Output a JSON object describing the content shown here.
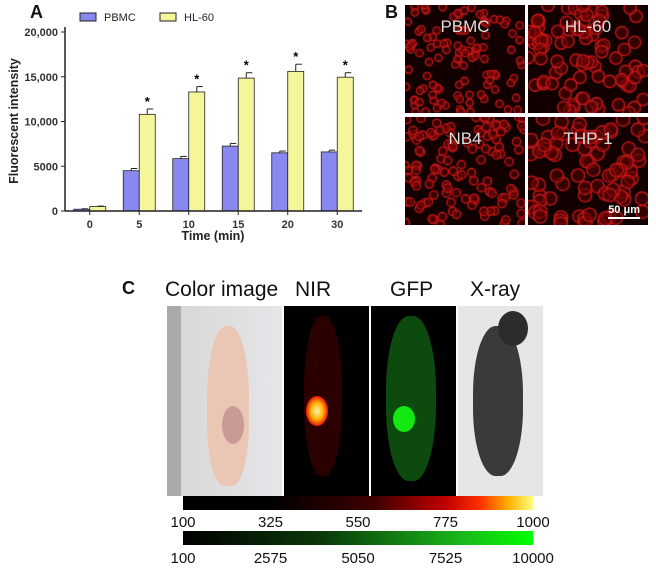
{
  "panels": {
    "a": "A",
    "b": "B",
    "c": "C"
  },
  "chart_data": {
    "type": "bar",
    "title": "",
    "xlabel": "Time (min)",
    "ylabel": "Fluorescent intensity",
    "categories": [
      "0",
      "5",
      "10",
      "15",
      "20",
      "30"
    ],
    "ylim": [
      0,
      20000
    ],
    "yticks": [
      0,
      5000,
      10000,
      15000,
      20000
    ],
    "ytick_labels": [
      "0",
      "5000",
      "10,000",
      "15,000",
      "20,000"
    ],
    "legend_position": "top",
    "series": [
      {
        "name": "PBMC",
        "color": "#8888ee",
        "values": [
          200,
          4500,
          5850,
          7250,
          6500,
          6600
        ],
        "errors": [
          50,
          250,
          250,
          300,
          200,
          200
        ]
      },
      {
        "name": "HL-60",
        "color": "#f5f59a",
        "values": [
          500,
          10800,
          13300,
          14850,
          15600,
          14950
        ],
        "errors": [
          50,
          600,
          600,
          600,
          800,
          500
        ]
      }
    ],
    "annotations": [
      "*",
      "*",
      "*",
      "*",
      "*"
    ]
  },
  "micrographs": [
    {
      "label": "PBMC"
    },
    {
      "label": "HL-60"
    },
    {
      "label": "NB4"
    },
    {
      "label": "THP-1"
    }
  ],
  "scale_bar": "50 μm",
  "imaging": {
    "titles": [
      "Color image",
      "NIR",
      "GFP",
      "X-ray"
    ]
  },
  "colorbars": [
    {
      "ticks": [
        "100",
        "325",
        "550",
        "775",
        "1000"
      ]
    },
    {
      "ticks": [
        "100",
        "2575",
        "5050",
        "7525",
        "10000"
      ]
    }
  ]
}
